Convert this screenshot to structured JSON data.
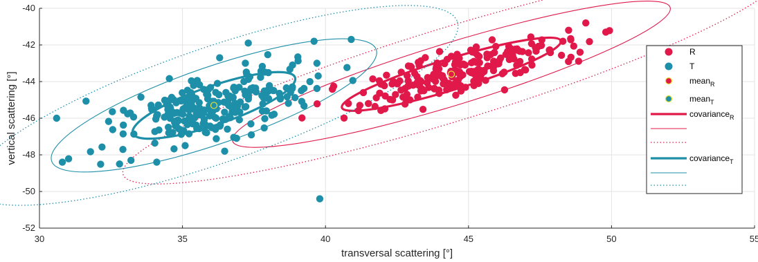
{
  "chart_data": {
    "type": "scatter",
    "title": "",
    "xlabel": "transversal scattering  [°]",
    "ylabel": "vertical scattering [°]",
    "xlim": [
      30,
      55
    ],
    "ylim": [
      -52,
      -40
    ],
    "xticks": [
      30,
      35,
      40,
      45,
      50,
      55
    ],
    "yticks": [
      -52,
      -50,
      -48,
      -46,
      -44,
      -42,
      -40
    ],
    "xtick_labels": [
      "30",
      "35",
      "40",
      "45",
      "50",
      "55"
    ],
    "ytick_labels": [
      "-52",
      "-50",
      "-48",
      "-46",
      "-44",
      "-42",
      "-40"
    ],
    "grid": true,
    "legend_position": "right",
    "colors": {
      "R": "#e0194a",
      "T": "#1e8fa8",
      "mean_edge": "#e8e23a"
    },
    "series": [
      {
        "name": "R",
        "mean": [
          44.4,
          -43.6
        ],
        "spread": {
          "sx": 1.75,
          "sy": 0.85,
          "rho": 0.72
        },
        "count": 220,
        "outliers": [
          [
            49.8,
            -41.3
          ],
          [
            49.1,
            -40.8
          ],
          [
            48.5,
            -41.2
          ],
          [
            48.3,
            -41.8
          ],
          [
            48.9,
            -42.4
          ],
          [
            41.5,
            -45.2
          ],
          [
            41.2,
            -45.3
          ],
          [
            40.8,
            -45.2
          ]
        ]
      },
      {
        "name": "T",
        "mean": [
          36.1,
          -45.3
        ],
        "spread": {
          "sx": 1.75,
          "sy": 1.0,
          "rho": 0.62
        },
        "count": 250,
        "outliers": [
          [
            30.6,
            -46.0
          ],
          [
            30.8,
            -48.4
          ],
          [
            39.8,
            -50.4
          ],
          [
            40.9,
            -41.7
          ],
          [
            39.6,
            -41.8
          ],
          [
            37.3,
            -41.9
          ],
          [
            36.3,
            -42.7
          ],
          [
            32.8,
            -48.5
          ],
          [
            33.2,
            -48.3
          ],
          [
            34.1,
            -48.4
          ],
          [
            39.7,
            -43.0
          ]
        ]
      }
    ],
    "covariance_ellipses": [
      {
        "series": "R",
        "center": [
          44.4,
          -43.6
        ],
        "rx": 4.0,
        "ry": 0.85,
        "angle_deg": 17,
        "scales": [
          1,
          2,
          3
        ],
        "styles": [
          "thick",
          "thin",
          "dotted"
        ]
      },
      {
        "series": "T",
        "center": [
          36.1,
          -45.3
        ],
        "rx": 3.0,
        "ry": 1.05,
        "angle_deg": 19,
        "scales": [
          1,
          2,
          3
        ],
        "styles": [
          "thick",
          "thin",
          "dotted"
        ]
      }
    ],
    "legend": [
      {
        "label": "R",
        "sub": "",
        "kind": "marker",
        "color": "#e0194a"
      },
      {
        "label": "T",
        "sub": "",
        "kind": "marker",
        "color": "#1e8fa8"
      },
      {
        "label": "mean",
        "sub": "R",
        "kind": "mean",
        "color": "#e0194a"
      },
      {
        "label": "mean",
        "sub": "T",
        "kind": "mean",
        "color": "#1e8fa8"
      },
      {
        "label": "covariance",
        "sub": "R",
        "kind": "line-thick",
        "color": "#e0194a"
      },
      {
        "label": "",
        "sub": "",
        "kind": "line-thin",
        "color": "#e0194a"
      },
      {
        "label": "",
        "sub": "",
        "kind": "line-dotted",
        "color": "#e0194a"
      },
      {
        "label": "covariance",
        "sub": "T",
        "kind": "line-thick",
        "color": "#1e8fa8"
      },
      {
        "label": "",
        "sub": "",
        "kind": "line-thin",
        "color": "#1e8fa8"
      },
      {
        "label": "",
        "sub": "",
        "kind": "line-dotted",
        "color": "#1e8fa8"
      }
    ]
  }
}
